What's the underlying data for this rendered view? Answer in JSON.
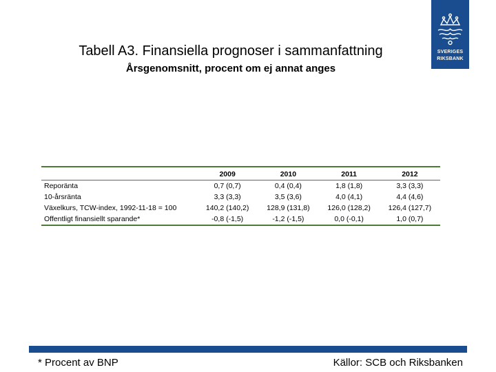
{
  "title": "Tabell A3. Finansiella prognoser i sammanfattning",
  "subtitle": "Årsgenomsnitt, procent om ej annat anges",
  "logo": {
    "line1": "SVERIGES",
    "line2": "RIKSBANK",
    "color": "#1a4d8f"
  },
  "table": {
    "years": [
      "2009",
      "2010",
      "2011",
      "2012"
    ],
    "rows": [
      {
        "label": "Reporänta",
        "values": [
          "0,7 (0,7)",
          "0,4 (0,4)",
          "1,8 (1,8)",
          "3,3 (3,3)"
        ]
      },
      {
        "label": "10-årsränta",
        "values": [
          "3,3 (3,3)",
          "3,5 (3,6)",
          "4,0 (4,1)",
          "4,4 (4,6)"
        ]
      },
      {
        "label": "Växelkurs, TCW-index, 1992-11-18 = 100",
        "values": [
          "140,2 (140,2)",
          "128,9 (131,8)",
          "126,0 (128,2)",
          "126,4 (127,7)"
        ]
      },
      {
        "label": "Offentligt finansiellt sparande*",
        "values": [
          "-0,8 (-1,5)",
          "-1,2 (-1,5)",
          "0,0 (-0,1)",
          "1,0 (0,7)"
        ]
      }
    ],
    "rule_color": "#4a7a36"
  },
  "footer": {
    "footnote": "* Procent av BNP",
    "source": "Källor: SCB och Riksbanken",
    "bar_color": "#1a4d8f"
  }
}
